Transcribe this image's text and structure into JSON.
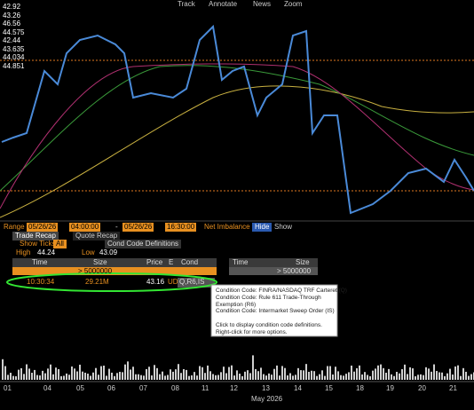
{
  "toolbar": {
    "items": [
      "Track",
      "Annotate",
      "News",
      "Zoom"
    ]
  },
  "chart": {
    "price_labels": [
      "42.92",
      "43.26",
      "46.56",
      "44.575",
      "42.44",
      "43.635",
      "44.034",
      "44.851"
    ],
    "x_labels": [
      "01",
      "04",
      "05",
      "06",
      "07",
      "08",
      "11",
      "12",
      "13",
      "14",
      "15",
      "18",
      "19",
      "20",
      "21"
    ],
    "month": "May 2026"
  },
  "controls": {
    "range_label": "Range",
    "start_date": "05/26/26",
    "start_time": "04:00:00",
    "dash": "-",
    "end_date": "05/26/26",
    "end_time": "16:30:00",
    "net_imbalance": "Net Imbalance",
    "hide": "Hide",
    "show": "Show",
    "tabs": [
      "Trade Recap",
      "Quote Recap"
    ],
    "show_ticks": "Show Ticks",
    "ticks_value": "All",
    "cond_code_definitions": "Cond Code Definitions",
    "high_label": "High",
    "high": "44.24",
    "low_label": "Low",
    "low": "43.09"
  },
  "table": {
    "headers": [
      "Time",
      "Size",
      "Price",
      "E",
      "Cond"
    ],
    "headers_right": [
      "Time",
      "Size"
    ],
    "filter": "> 5000000",
    "filter_right": "> 5000000",
    "rows": [
      [
        "10:30:34",
        "29.21M",
        "43.16",
        "UD",
        "Q,R6,IS"
      ]
    ]
  },
  "tooltip": {
    "lines": [
      "Condition Code: FINRA/NASDAQ TRF Carteret (Q)",
      "Condition Code: Rule 611 Trade-Through",
      "Exemption (R6)",
      "Condition Code: Intermarket Sweep Order (IS)",
      "",
      "Click to display condition code definitions.",
      "Right-click for more options."
    ]
  }
}
